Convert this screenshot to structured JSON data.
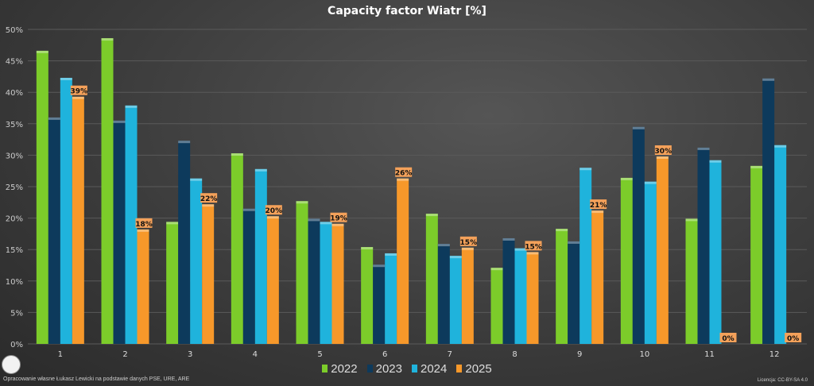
{
  "chart_data": {
    "type": "bar",
    "title": "Capacity factor Wiatr [%]",
    "xlabel": "",
    "ylabel": "",
    "ylim": [
      0,
      50
    ],
    "yticks": [
      "0%",
      "5%",
      "10%",
      "15%",
      "20%",
      "25%",
      "30%",
      "35%",
      "40%",
      "45%",
      "50%"
    ],
    "grid": true,
    "legend": "bottom",
    "categories": [
      "1",
      "2",
      "3",
      "4",
      "5",
      "6",
      "7",
      "8",
      "9",
      "10",
      "11",
      "12"
    ],
    "series": [
      {
        "name": "2022",
        "color": "#7ccc2a",
        "values": [
          46.6,
          48.6,
          19.4,
          30.3,
          22.7,
          15.4,
          20.7,
          12.1,
          18.3,
          26.4,
          19.9,
          28.3
        ]
      },
      {
        "name": "2023",
        "color": "#0d3a5c",
        "values": [
          36.0,
          35.5,
          32.3,
          21.5,
          19.9,
          12.6,
          15.9,
          16.8,
          16.3,
          34.5,
          31.2,
          42.2
        ]
      },
      {
        "name": "2024",
        "color": "#1fb3dc",
        "values": [
          42.3,
          37.9,
          26.3,
          27.8,
          19.4,
          14.4,
          14.0,
          15.2,
          28.0,
          25.8,
          29.2,
          31.6
        ]
      },
      {
        "name": "2025",
        "color": "#f7982a",
        "values": [
          39.3,
          18.2,
          22.2,
          20.3,
          19.1,
          26.3,
          15.3,
          14.6,
          21.2,
          29.8,
          0,
          0
        ],
        "data_labels": [
          "39%",
          "18%",
          "22%",
          "20%",
          "19%",
          "26%",
          "15%",
          "15%",
          "21%",
          "30%",
          "0%",
          "0%"
        ]
      }
    ]
  },
  "footer": {
    "source": "Opracowanie własne Łukasz Lewicki na podstawie danych PSE, URE, ARE",
    "license": "Licencja: CC-BY-SA 4.0"
  }
}
